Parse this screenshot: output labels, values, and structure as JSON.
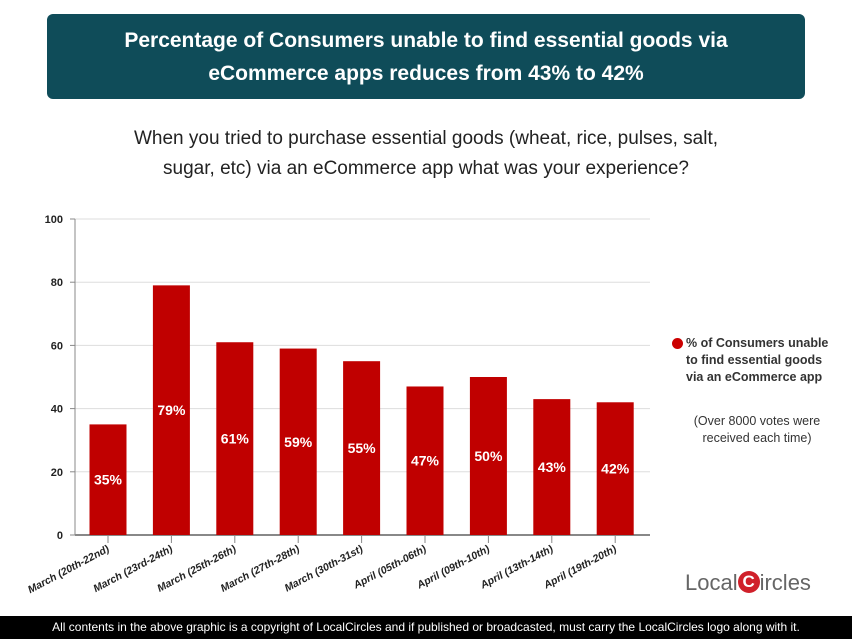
{
  "title": {
    "line1": "Percentage of Consumers unable to find essential goods via",
    "line2": "eCommerce apps reduces from 43% to 42%"
  },
  "subtitle": {
    "line1": "When you tried to purchase essential goods (wheat, rice, pulses, salt,",
    "line2": "sugar, etc) via an eCommerce app what was your experience?"
  },
  "legend": {
    "label": "% of Consumers unable to find essential goods via an eCommerce app",
    "color": "#c00000"
  },
  "note": "(Over 8000 votes were received each time)",
  "logo": {
    "text_left": "Local",
    "text_c": "C",
    "text_right": "ircles"
  },
  "footer": "All contents in the above graphic is a copyright of LocalCircles and if published or broadcasted, must carry the LocalCircles logo along with it.",
  "chart_data": {
    "type": "bar",
    "categories": [
      "March (20th-22nd)",
      "March (23rd-24th)",
      "March (25th-26th)",
      "March (27th-28th)",
      "March (30th-31st)",
      "April (05th-06th)",
      "April (09th-10th)",
      "April (13th-14th)",
      "April (19th-20th)"
    ],
    "series": [
      {
        "name": "% of Consumers unable to find essential goods via an eCommerce app",
        "values": [
          35,
          79,
          61,
          59,
          55,
          47,
          50,
          43,
          42
        ],
        "color": "#c00000"
      }
    ],
    "data_labels": [
      "35%",
      "79%",
      "61%",
      "59%",
      "55%",
      "47%",
      "50%",
      "43%",
      "42%"
    ],
    "yticks": [
      0,
      20,
      40,
      60,
      80,
      100
    ],
    "ylim": [
      0,
      100
    ],
    "grid": true,
    "legend_position": "right"
  }
}
